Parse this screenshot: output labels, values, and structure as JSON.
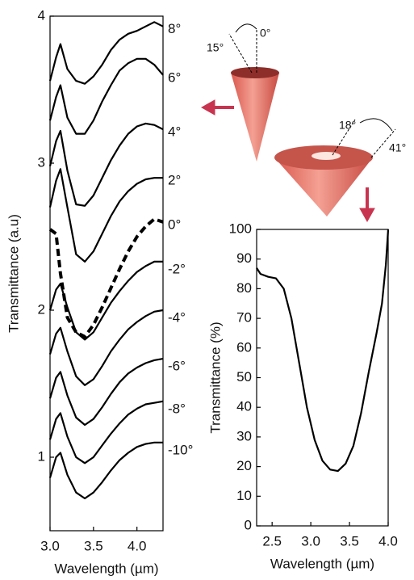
{
  "chart_data": [
    {
      "type": "line",
      "y_label": "Transmittance (a.u)",
      "x_label": "Wavelength (µm)",
      "xlim": [
        3.0,
        4.3
      ],
      "ylim": [
        0.5,
        4
      ],
      "xticks": [
        {
          "value": 3,
          "label": "3.0"
        },
        3.5,
        {
          "value": 4,
          "label": "4.0"
        }
      ],
      "yticks": [
        1,
        2,
        3,
        4
      ],
      "x": [
        3.0,
        3.07,
        3.12,
        3.2,
        3.3,
        3.4,
        3.5,
        3.6,
        3.7,
        3.8,
        3.9,
        4.0,
        4.1,
        4.2,
        4.3
      ],
      "series": [
        {
          "name": "8°",
          "color": "#000000",
          "values": [
            3.56,
            3.72,
            3.81,
            3.64,
            3.56,
            3.54,
            3.59,
            3.67,
            3.77,
            3.84,
            3.88,
            3.9,
            3.93,
            3.96,
            3.93
          ]
        },
        {
          "name": "6°",
          "color": "#000000",
          "values": [
            3.29,
            3.45,
            3.53,
            3.31,
            3.2,
            3.2,
            3.29,
            3.42,
            3.53,
            3.63,
            3.68,
            3.71,
            3.71,
            3.67,
            3.6
          ]
        },
        {
          "name": "4°",
          "color": "#000000",
          "values": [
            2.98,
            3.15,
            3.22,
            2.95,
            2.72,
            2.71,
            2.78,
            2.9,
            3.02,
            3.12,
            3.2,
            3.25,
            3.27,
            3.26,
            3.23
          ]
        },
        {
          "name": "2°",
          "color": "#000000",
          "values": [
            2.7,
            2.88,
            2.96,
            2.7,
            2.38,
            2.33,
            2.4,
            2.52,
            2.64,
            2.74,
            2.81,
            2.86,
            2.89,
            2.9,
            2.9
          ]
        },
        {
          "name": "0°",
          "color": "#000000",
          "dashed": true,
          "values": [
            2.55,
            2.52,
            2.25,
            1.95,
            1.85,
            1.82,
            1.9,
            2.02,
            2.15,
            2.28,
            2.4,
            2.5,
            2.57,
            2.62,
            2.6
          ]
        },
        {
          "name": "-2°",
          "color": "#000000",
          "values": [
            2.0,
            2.14,
            2.18,
            2.02,
            1.85,
            1.8,
            1.85,
            1.95,
            2.05,
            2.13,
            2.2,
            2.26,
            2.3,
            2.33,
            2.33
          ]
        },
        {
          "name": "-4°",
          "color": "#000000",
          "values": [
            1.7,
            1.84,
            1.88,
            1.72,
            1.55,
            1.49,
            1.53,
            1.62,
            1.72,
            1.8,
            1.87,
            1.92,
            1.96,
            1.99,
            2.0
          ]
        },
        {
          "name": "-6°",
          "color": "#000000",
          "values": [
            1.4,
            1.54,
            1.58,
            1.42,
            1.27,
            1.22,
            1.26,
            1.34,
            1.43,
            1.51,
            1.57,
            1.61,
            1.64,
            1.66,
            1.67
          ]
        },
        {
          "name": "-8°",
          "color": "#000000",
          "values": [
            1.12,
            1.26,
            1.3,
            1.14,
            1.0,
            0.96,
            1.0,
            1.08,
            1.16,
            1.23,
            1.29,
            1.33,
            1.36,
            1.37,
            1.38
          ]
        },
        {
          "name": "-10°",
          "color": "#000000",
          "values": [
            0.86,
            1.0,
            1.03,
            0.88,
            0.76,
            0.72,
            0.76,
            0.83,
            0.91,
            0.98,
            1.03,
            1.07,
            1.09,
            1.1,
            1.1
          ]
        }
      ]
    },
    {
      "type": "line",
      "y_label": "Transmittance (%)",
      "x_label": "Wavelength (µm)",
      "xlim": [
        2.3,
        4.0
      ],
      "ylim": [
        0,
        100
      ],
      "xticks": [
        2.5,
        {
          "value": 3,
          "label": "3.0"
        },
        3.5,
        {
          "value": 4,
          "label": "4.0"
        }
      ],
      "yticks": [
        0,
        10,
        20,
        30,
        40,
        50,
        60,
        70,
        80,
        90,
        100
      ],
      "x": [
        2.3,
        2.35,
        2.45,
        2.55,
        2.65,
        2.75,
        2.85,
        2.95,
        3.05,
        3.15,
        3.25,
        3.35,
        3.45,
        3.55,
        3.65,
        3.75,
        3.85,
        3.92,
        3.97,
        4.0
      ],
      "color": "#000000",
      "values": [
        87,
        85,
        84,
        83.5,
        80,
        70,
        55,
        40,
        29,
        22,
        19,
        18.5,
        21,
        27,
        38,
        52,
        65,
        75,
        88,
        100
      ]
    }
  ],
  "diagram": {
    "labels": [
      "15°",
      "0°",
      "18°",
      "41°"
    ]
  }
}
